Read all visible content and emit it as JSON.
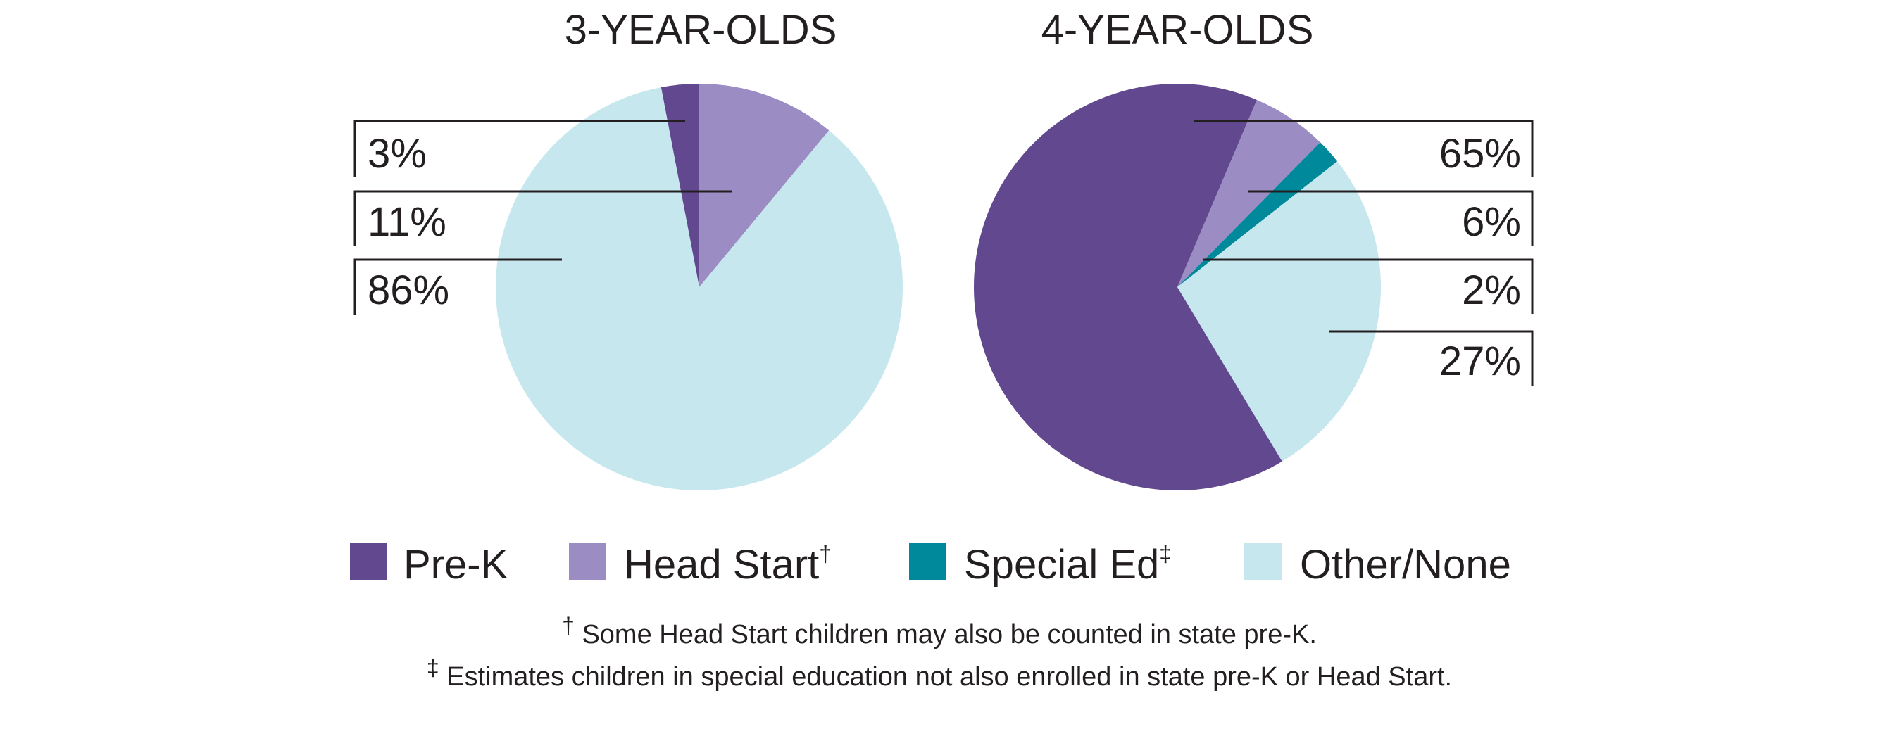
{
  "chart_data": [
    {
      "type": "pie",
      "title": "3-YEAR-OLDS",
      "categories": [
        "Pre-K",
        "Head Start",
        "Special Ed",
        "Other/None"
      ],
      "values": [
        3,
        11,
        0,
        86
      ],
      "labels": [
        "3%",
        "11%",
        "86%"
      ]
    },
    {
      "type": "pie",
      "title": "4-YEAR-OLDS",
      "categories": [
        "Pre-K",
        "Head Start",
        "Special Ed",
        "Other/None"
      ],
      "values": [
        65,
        6,
        2,
        27
      ],
      "labels": [
        "65%",
        "6%",
        "2%",
        "27%"
      ]
    }
  ],
  "legend": {
    "placement": "bottom",
    "items": [
      {
        "label": "Pre-K",
        "mark": "",
        "color": "#62488f"
      },
      {
        "label": "Head Start",
        "mark": "†",
        "color": "#9b8cc3"
      },
      {
        "label": "Special Ed",
        "mark": "‡",
        "color": "#00899b"
      },
      {
        "label": "Other/None",
        "mark": "",
        "color": "#c6e7ee"
      }
    ]
  },
  "footnotes": [
    {
      "mark": "†",
      "text": " Some Head Start children may also be counted in state pre-K."
    },
    {
      "mark": "‡",
      "text": " Estimates children in special education not also enrolled in state pre-K or Head Start."
    }
  ]
}
